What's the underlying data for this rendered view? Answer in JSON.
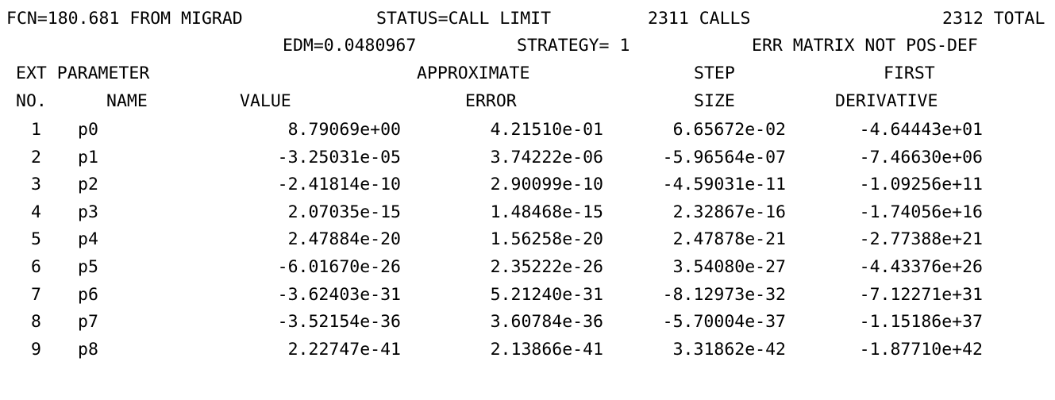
{
  "summary": {
    "fcn": "FCN=180.681 FROM MIGRAD",
    "status": "STATUS=CALL LIMIT",
    "calls": "2311 CALLS",
    "total": "2312 TOTAL",
    "edm": "EDM=0.0480967",
    "strategy": "STRATEGY= 1",
    "err_matrix": "ERR MATRIX NOT POS-DEF"
  },
  "table": {
    "header1": {
      "ext_parameter": "EXT PARAMETER",
      "approximate": "APPROXIMATE",
      "step": "STEP",
      "first": "FIRST"
    },
    "header2": {
      "no": "NO.",
      "name": "NAME",
      "value": "VALUE",
      "error": "ERROR",
      "size": "SIZE",
      "derivative": "DERIVATIVE"
    },
    "rows": [
      {
        "no": "1",
        "name": "p0",
        "value": "8.79069e+00",
        "error": "4.21510e-01",
        "step": "6.65672e-02",
        "derivative": "-4.64443e+01"
      },
      {
        "no": "2",
        "name": "p1",
        "value": "-3.25031e-05",
        "error": "3.74222e-06",
        "step": "-5.96564e-07",
        "derivative": "-7.46630e+06"
      },
      {
        "no": "3",
        "name": "p2",
        "value": "-2.41814e-10",
        "error": "2.90099e-10",
        "step": "-4.59031e-11",
        "derivative": "-1.09256e+11"
      },
      {
        "no": "4",
        "name": "p3",
        "value": "2.07035e-15",
        "error": "1.48468e-15",
        "step": "2.32867e-16",
        "derivative": "-1.74056e+16"
      },
      {
        "no": "5",
        "name": "p4",
        "value": "2.47884e-20",
        "error": "1.56258e-20",
        "step": "2.47878e-21",
        "derivative": "-2.77388e+21"
      },
      {
        "no": "6",
        "name": "p5",
        "value": "-6.01670e-26",
        "error": "2.35222e-26",
        "step": "3.54080e-27",
        "derivative": "-4.43376e+26"
      },
      {
        "no": "7",
        "name": "p6",
        "value": "-3.62403e-31",
        "error": "5.21240e-31",
        "step": "-8.12973e-32",
        "derivative": "-7.12271e+31"
      },
      {
        "no": "8",
        "name": "p7",
        "value": "-3.52154e-36",
        "error": "3.60784e-36",
        "step": "-5.70004e-37",
        "derivative": "-1.15186e+37"
      },
      {
        "no": "9",
        "name": "p8",
        "value": "2.22747e-41",
        "error": "2.13866e-41",
        "step": "3.31862e-42",
        "derivative": "-1.87710e+42"
      }
    ]
  }
}
